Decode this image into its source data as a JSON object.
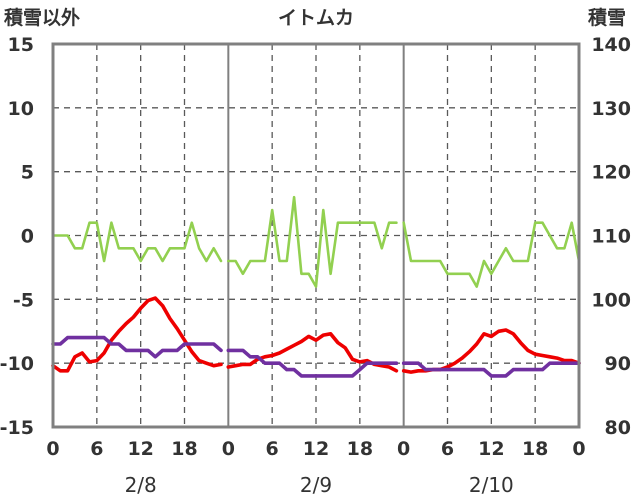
{
  "chart_data": {
    "type": "line",
    "title": "イトムカ",
    "left_axis_label": "積雪以外",
    "right_axis_label": "積雪",
    "left_ticks": [
      "15",
      "10",
      "5",
      "0",
      "-5",
      "-10",
      "-15"
    ],
    "right_ticks": [
      "140",
      "130",
      "120",
      "110",
      "100",
      "90",
      "80"
    ],
    "x_tick_labels": [
      "0",
      "6",
      "12",
      "18",
      "0",
      "6",
      "12",
      "18",
      "0",
      "6",
      "12",
      "18",
      "0"
    ],
    "day_labels": [
      "2/8",
      "2/9",
      "2/10"
    ],
    "ylim_left": [
      -15,
      15
    ],
    "ylim_right": [
      80,
      140
    ],
    "x_range_hours": [
      0,
      72
    ],
    "grid": "dashed at hours 6, 12, 18 of each day; solid day separators",
    "colors": {
      "green": "#92d050",
      "red": "#ee0000",
      "purple": "#7030a0",
      "frame": "#808080",
      "grid": "#595959"
    },
    "series": [
      {
        "color": "green",
        "axis": "left",
        "segments": [
          {
            "x": [
              0,
              1,
              2,
              3,
              4,
              5,
              6,
              7,
              8,
              9,
              10,
              11,
              12,
              13,
              14,
              15,
              16,
              17,
              18,
              19,
              20,
              21,
              22,
              23
            ],
            "y": [
              0,
              0,
              0,
              -1,
              -1,
              1,
              1,
              -2,
              1,
              -1,
              -1,
              -1,
              -2,
              -1,
              -1,
              -2,
              -1,
              -1,
              -1,
              1,
              -1,
              -2,
              -1,
              -2
            ]
          },
          {
            "x": [
              24,
              25,
              26,
              27,
              28,
              29,
              30,
              31,
              32,
              33,
              34,
              35,
              36,
              37,
              38,
              39,
              40,
              41,
              42,
              43,
              44,
              45,
              46,
              47
            ],
            "y": [
              -2,
              -2,
              -3,
              -2,
              -2,
              -2,
              2,
              -2,
              -2,
              3,
              -3,
              -3,
              -4,
              2,
              -3,
              1,
              1,
              1,
              1,
              1,
              1,
              -1,
              1,
              1
            ]
          },
          {
            "x": [
              48,
              49,
              50,
              51,
              52,
              53,
              54,
              55,
              56,
              57,
              58,
              59,
              60,
              61,
              62,
              63,
              64,
              65,
              66,
              67,
              68,
              69,
              70,
              71,
              72
            ],
            "y": [
              1,
              -2,
              -2,
              -2,
              -2,
              -2,
              -3,
              -3,
              -3,
              -3,
              -4,
              -2,
              -3,
              -2,
              -1,
              -2,
              -2,
              -2,
              1,
              1,
              0,
              -1,
              -1,
              1,
              -2
            ]
          }
        ]
      },
      {
        "color": "red",
        "axis": "left",
        "segments": [
          {
            "x": [
              0,
              1,
              2,
              3,
              4,
              5,
              6,
              7,
              8,
              9,
              10,
              11,
              12,
              13,
              14,
              15,
              16,
              17,
              18,
              19,
              20,
              21,
              22,
              23
            ],
            "y": [
              -10.2,
              -10.6,
              -10.6,
              -9.5,
              -9.2,
              -9.9,
              -9.8,
              -9.2,
              -8.2,
              -7.5,
              -6.9,
              -6.4,
              -5.7,
              -5.1,
              -4.9,
              -5.5,
              -6.5,
              -7.3,
              -8.2,
              -9.1,
              -9.8,
              -10,
              -10.2,
              -10.1
            ]
          },
          {
            "x": [
              24,
              25,
              26,
              27,
              28,
              29,
              30,
              31,
              32,
              33,
              34,
              35,
              36,
              37,
              38,
              39,
              40,
              41,
              42,
              43,
              44,
              45,
              46,
              47
            ],
            "y": [
              -10.3,
              -10.2,
              -10.1,
              -10.1,
              -9.7,
              -9.5,
              -9.4,
              -9.2,
              -8.9,
              -8.6,
              -8.3,
              -7.9,
              -8.2,
              -7.8,
              -7.7,
              -8.4,
              -8.8,
              -9.7,
              -9.9,
              -9.8,
              -10.1,
              -10.2,
              -10.3,
              -10.6
            ]
          },
          {
            "x": [
              48,
              49,
              50,
              51,
              52,
              53,
              54,
              55,
              56,
              57,
              58,
              59,
              60,
              61,
              62,
              63,
              64,
              65,
              66,
              67,
              68,
              69,
              70,
              71,
              72
            ],
            "y": [
              -10.6,
              -10.7,
              -10.6,
              -10.6,
              -10.5,
              -10.5,
              -10.3,
              -10,
              -9.6,
              -9.1,
              -8.5,
              -7.7,
              -7.9,
              -7.5,
              -7.4,
              -7.7,
              -8.4,
              -9,
              -9.3,
              -9.4,
              -9.5,
              -9.6,
              -9.8,
              -9.8,
              -10
            ]
          }
        ]
      },
      {
        "color": "purple",
        "axis": "right",
        "segments": [
          {
            "x": [
              0,
              1,
              2,
              3,
              4,
              5,
              6,
              7,
              8,
              9,
              10,
              11,
              12,
              13,
              14,
              15,
              16,
              17,
              18,
              19,
              20,
              21,
              22,
              23
            ],
            "y": [
              93,
              93,
              94,
              94,
              94,
              94,
              94,
              94,
              93,
              93,
              92,
              92,
              92,
              92,
              91,
              92,
              92,
              92,
              93,
              93,
              93,
              93,
              93,
              92
            ]
          },
          {
            "x": [
              24,
              25,
              26,
              27,
              28,
              29,
              30,
              31,
              32,
              33,
              34,
              35,
              36,
              37,
              38,
              39,
              40,
              41,
              42,
              43,
              44,
              45,
              46,
              47
            ],
            "y": [
              92,
              92,
              92,
              91,
              91,
              90,
              90,
              90,
              89,
              89,
              88,
              88,
              88,
              88,
              88,
              88,
              88,
              88,
              89,
              90,
              90,
              90,
              90,
              90
            ]
          },
          {
            "x": [
              48,
              49,
              50,
              51,
              52,
              53,
              54,
              55,
              56,
              57,
              58,
              59,
              60,
              61,
              62,
              63,
              64,
              65,
              66,
              67,
              68,
              69,
              70,
              71,
              72
            ],
            "y": [
              90,
              90,
              90,
              89,
              89,
              89,
              89,
              89,
              89,
              89,
              89,
              89,
              88,
              88,
              88,
              89,
              89,
              89,
              89,
              89,
              90,
              90,
              90,
              90,
              90
            ]
          }
        ]
      }
    ]
  }
}
